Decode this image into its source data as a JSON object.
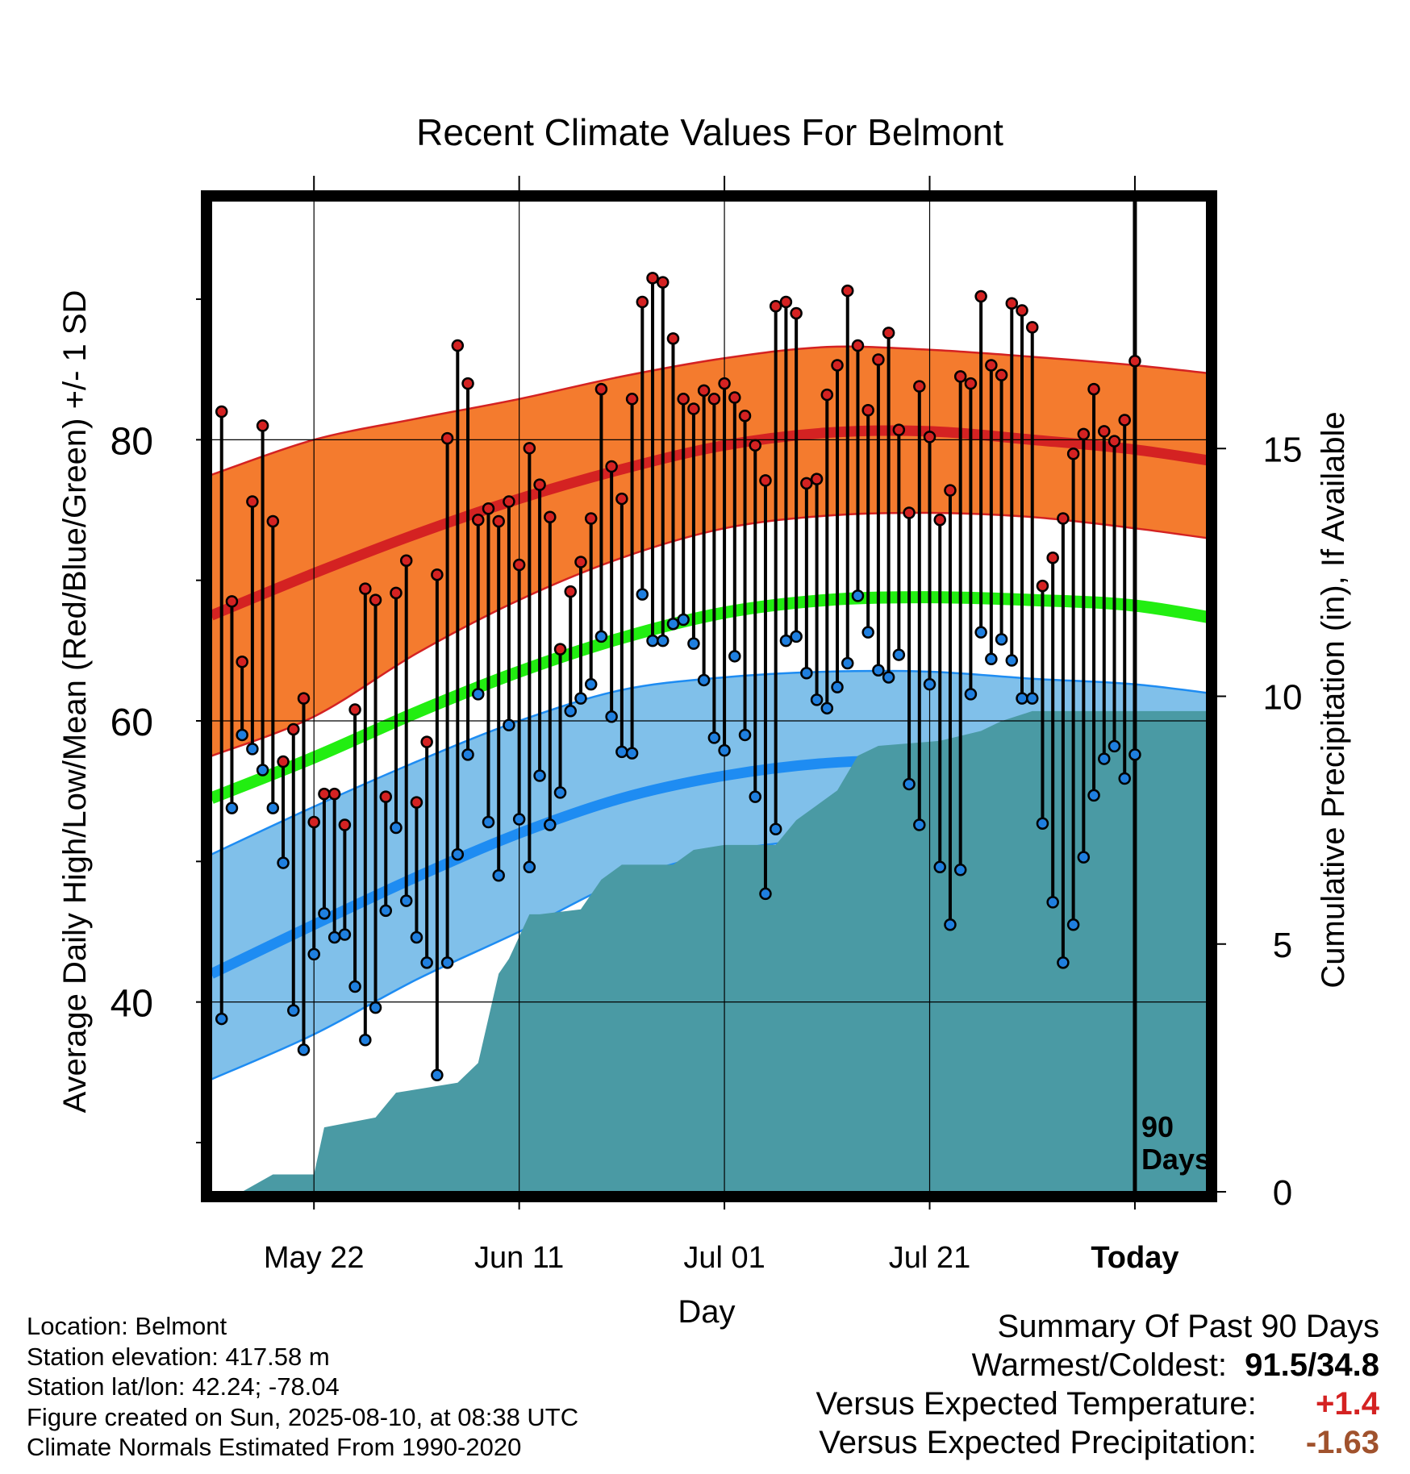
{
  "chart_data": {
    "type": "line",
    "title": "Recent Climate Values For Belmont",
    "xlabel": "Day",
    "ylabel": "Average Daily High/Low/Mean (Red/Blue/Green) +/- 1 SD",
    "y2label": "Cumulative Precipitation (in), If Available",
    "x_range_days": [
      -90,
      7
    ],
    "ylim": [
      26.5,
      97
    ],
    "y_ticks": [
      40,
      60,
      80
    ],
    "y2lim": [
      0,
      20
    ],
    "y2_ticks": [
      0,
      5,
      10,
      15
    ],
    "x_ticks": [
      {
        "label": "May 22",
        "day": -80
      },
      {
        "label": "Jun 11",
        "day": -60
      },
      {
        "label": "Jul 01",
        "day": -40
      },
      {
        "label": "Jul 21",
        "day": -20
      },
      {
        "label": "Today",
        "day": 0
      }
    ],
    "today_label": [
      "90",
      "Days"
    ],
    "grid": true,
    "normals": {
      "days": [
        -90,
        -80,
        -70,
        -60,
        -50,
        -40,
        -30,
        -20,
        -10,
        0,
        10
      ],
      "high_mean": [
        67.5,
        70.5,
        73.3,
        75.8,
        77.9,
        79.6,
        80.5,
        80.6,
        80.0,
        79.3,
        78.2
      ],
      "high_upper": [
        77.5,
        80.0,
        81.5,
        82.9,
        84.5,
        85.8,
        86.6,
        86.4,
        85.9,
        85.3,
        84.5
      ],
      "high_lower": [
        57.5,
        60.3,
        64.8,
        68.6,
        71.6,
        73.7,
        74.6,
        74.8,
        74.5,
        73.7,
        72.7
      ],
      "avg_mean": [
        54.5,
        57.4,
        60.6,
        63.5,
        65.9,
        67.7,
        68.6,
        68.8,
        68.6,
        68.2,
        67.0
      ],
      "low_mean": [
        42.0,
        45.5,
        48.9,
        52.0,
        54.5,
        56.1,
        57.0,
        57.2,
        57.0,
        56.6,
        55.5
      ],
      "low_upper": [
        50.5,
        53.9,
        57.1,
        60.0,
        62.2,
        63.1,
        63.5,
        63.5,
        63.0,
        62.6,
        61.7
      ],
      "low_lower": [
        34.5,
        37.7,
        41.6,
        45.0,
        48.6,
        50.7,
        51.6,
        51.8,
        51.6,
        51.0,
        49.9
      ]
    },
    "series": [
      {
        "name": "High",
        "color": "#d42222",
        "values": [
          82.0,
          68.5,
          64.2,
          75.6,
          81.0,
          74.2,
          57.1,
          59.4,
          61.6,
          52.8,
          54.8,
          54.8,
          52.6,
          60.8,
          69.4,
          68.6,
          54.6,
          69.1,
          71.4,
          54.2,
          58.5,
          70.4,
          80.1,
          86.7,
          84.0,
          74.3,
          75.1,
          74.2,
          75.6,
          71.1,
          79.4,
          76.8,
          74.5,
          65.1,
          69.2,
          71.3,
          74.4,
          83.6,
          78.1,
          75.8,
          82.9,
          89.8,
          91.5,
          91.2,
          87.2,
          82.9,
          82.2,
          83.5,
          82.9,
          84.0,
          83.0,
          81.7,
          79.6,
          77.1,
          89.5,
          89.8,
          89.0,
          76.9,
          77.2,
          83.2,
          85.3,
          90.6,
          86.7,
          82.1,
          85.7,
          87.6,
          80.7,
          74.8,
          83.8,
          80.2,
          74.3,
          76.4,
          84.5,
          84.0,
          90.2,
          85.3,
          84.6,
          89.7,
          89.2,
          88.0,
          69.6,
          71.6,
          74.4,
          79.0,
          80.4,
          83.6,
          80.6,
          79.9,
          81.4,
          85.6
        ]
      },
      {
        "name": "Low",
        "color": "#1f7fdf",
        "values": [
          38.8,
          53.8,
          59.0,
          58.0,
          56.5,
          53.8,
          49.9,
          39.4,
          36.6,
          43.4,
          46.3,
          44.6,
          44.8,
          41.1,
          37.3,
          39.6,
          46.5,
          52.4,
          47.2,
          44.6,
          42.8,
          34.8,
          42.8,
          50.5,
          57.6,
          61.9,
          52.8,
          49.0,
          59.7,
          53.0,
          49.6,
          56.1,
          52.6,
          54.9,
          60.7,
          61.6,
          62.6,
          66.0,
          60.3,
          57.8,
          57.7,
          69.0,
          65.7,
          65.7,
          66.9,
          67.2,
          65.5,
          62.9,
          58.8,
          57.9,
          64.6,
          59.0,
          54.6,
          47.7,
          52.3,
          65.7,
          66.0,
          63.4,
          61.5,
          60.9,
          62.4,
          64.1,
          68.9,
          66.3,
          63.6,
          63.1,
          64.7,
          55.5,
          52.6,
          62.6,
          49.6,
          45.5,
          49.4,
          61.9,
          66.3,
          64.4,
          65.8,
          64.3,
          61.6,
          61.6,
          52.7,
          47.1,
          42.8,
          45.5,
          50.3,
          54.7,
          57.3,
          58.2,
          55.9,
          57.6
        ]
      },
      {
        "name": "Cumulative Precipitation",
        "color": "#4a9aa4",
        "days": [
          -90,
          -87,
          -84,
          -80,
          -79,
          -74,
          -72,
          -66,
          -64,
          -62,
          -61,
          -59,
          -58,
          -54,
          -52,
          -50,
          -49,
          -45,
          -43,
          -40,
          -35,
          -33,
          -31,
          -29,
          -27,
          -25,
          -19,
          -15,
          -13,
          -10,
          0,
          7
        ],
        "values": [
          0.0,
          0.0,
          0.35,
          0.35,
          1.3,
          1.5,
          2.0,
          2.2,
          2.6,
          4.4,
          4.7,
          5.6,
          5.6,
          5.7,
          6.3,
          6.6,
          6.6,
          6.6,
          6.9,
          7.0,
          7.0,
          7.5,
          7.8,
          8.1,
          8.8,
          9.0,
          9.1,
          9.3,
          9.5,
          9.7,
          9.7,
          9.7
        ]
      }
    ]
  },
  "info": {
    "location": "Location: Belmont",
    "elevation": "Station elevation: 417.58 m",
    "latlon": "Station lat/lon: 42.24; -78.04",
    "created": "Figure created on Sun, 2025-08-10, at 08:38 UTC",
    "normals": "Climate Normals Estimated From 1990-2020"
  },
  "summary": {
    "title": "Summary Of Past 90 Days",
    "warm_cold_label": "Warmest/Coldest:",
    "warm_cold_value": "91.5/34.8",
    "temp_label": "Versus Expected Temperature:",
    "temp_value": "+1.4",
    "temp_color": "#d42222",
    "precip_label": "Versus Expected Precipitation:",
    "precip_value": "-1.63",
    "precip_color": "#a0522d"
  },
  "colors": {
    "high_band": "#f47b2e",
    "high_line": "#d42222",
    "mean_line": "#22ee11",
    "low_band": "#80c0ea",
    "low_line": "#1e8cf2",
    "precip": "#4a9aa4"
  }
}
